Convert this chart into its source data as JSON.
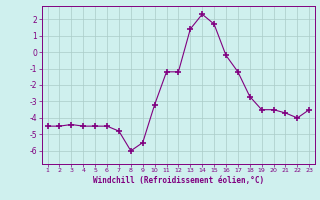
{
  "x": [
    1,
    2,
    3,
    4,
    5,
    6,
    7,
    8,
    9,
    10,
    11,
    12,
    13,
    14,
    15,
    16,
    17,
    18,
    19,
    20,
    21,
    22,
    23
  ],
  "y": [
    -4.5,
    -4.5,
    -4.4,
    -4.5,
    -4.5,
    -4.5,
    -4.8,
    -6.0,
    -5.5,
    -3.2,
    -1.2,
    -1.2,
    1.4,
    2.3,
    1.7,
    -0.2,
    -1.2,
    -2.7,
    -3.5,
    -3.5,
    -3.7,
    -4.0,
    -3.5
  ],
  "line_color": "#800080",
  "marker": "+",
  "marker_size": 4,
  "marker_color": "#800080",
  "bg_color": "#cff0ee",
  "grid_color": "#aaccc8",
  "xlabel": "Windchill (Refroidissement éolien,°C)",
  "xlabel_color": "#800080",
  "tick_color": "#800080",
  "ylim": [
    -6.8,
    2.8
  ],
  "yticks": [
    -6,
    -5,
    -4,
    -3,
    -2,
    -1,
    0,
    1,
    2
  ],
  "xlim": [
    0.5,
    23.5
  ],
  "xticks": [
    1,
    2,
    3,
    4,
    5,
    6,
    7,
    8,
    9,
    10,
    11,
    12,
    13,
    14,
    15,
    16,
    17,
    18,
    19,
    20,
    21,
    22,
    23
  ]
}
